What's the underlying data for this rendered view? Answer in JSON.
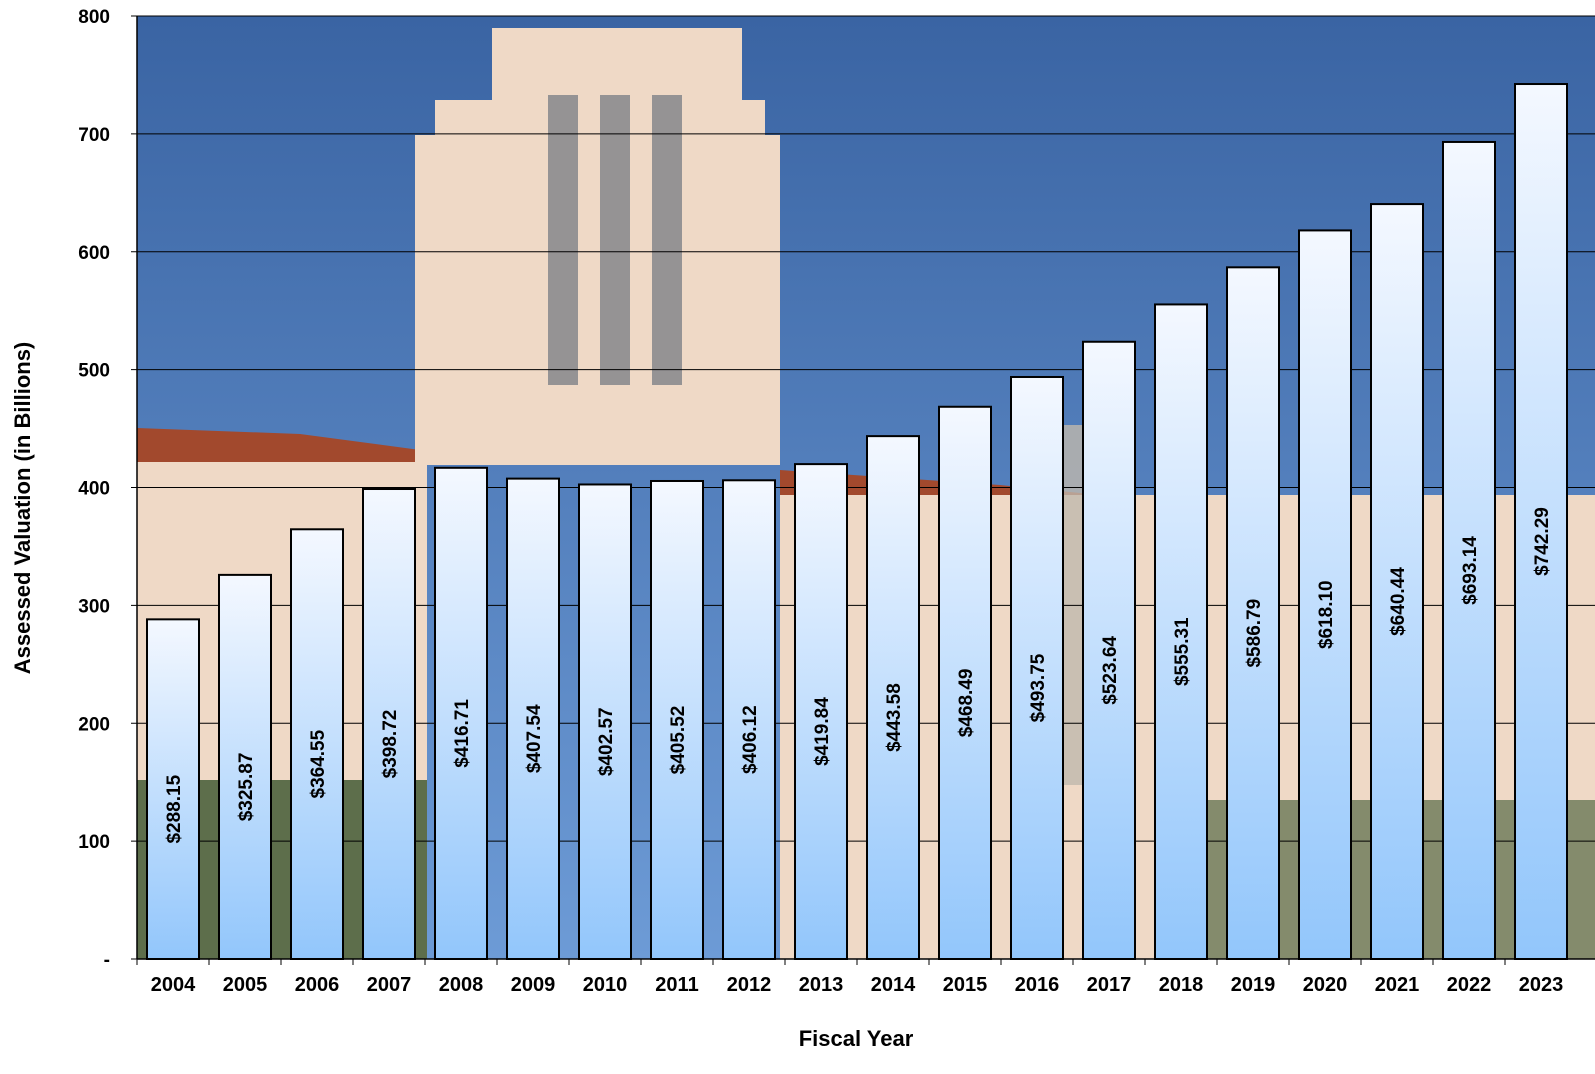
{
  "chart_data": {
    "type": "bar",
    "title": "",
    "xlabel": "Fiscal Year",
    "ylabel": "Assessed Valuation (in Billions)",
    "ylim": [
      0,
      800
    ],
    "yticks": [
      {
        "value": 0,
        "label": "-"
      },
      {
        "value": 100,
        "label": "100"
      },
      {
        "value": 200,
        "label": "200"
      },
      {
        "value": 300,
        "label": "300"
      },
      {
        "value": 400,
        "label": "400"
      },
      {
        "value": 500,
        "label": "500"
      },
      {
        "value": 600,
        "label": "600"
      },
      {
        "value": 700,
        "label": "700"
      },
      {
        "value": 800,
        "label": "800"
      }
    ],
    "grid": true,
    "legend": "none",
    "categories": [
      "2004",
      "2005",
      "2006",
      "2007",
      "2008",
      "2009",
      "2010",
      "2011",
      "2012",
      "2013",
      "2014",
      "2015",
      "2016",
      "2017",
      "2018",
      "2019",
      "2020",
      "2021",
      "2022",
      "2023"
    ],
    "values": [
      288.15,
      325.87,
      364.55,
      398.72,
      416.71,
      407.54,
      402.57,
      405.52,
      406.12,
      419.84,
      443.58,
      468.49,
      493.75,
      523.64,
      555.31,
      586.79,
      618.1,
      640.44,
      693.14,
      742.29
    ],
    "data_labels": [
      "$288.15",
      "$325.87",
      "$364.55",
      "$398.72",
      "$416.71",
      "$407.54",
      "$402.57",
      "$405.52",
      "$406.12",
      "$419.84",
      "$443.58",
      "$468.49",
      "$493.75",
      "$523.64",
      "$555.31",
      "$586.79",
      "$618.10",
      "$640.44",
      "$693.14",
      "$742.29"
    ],
    "colors": {
      "bar_top": "#f4f8ff",
      "bar_bottom": "#92c6fb",
      "bar_stroke": "#000000",
      "sky_top": "#3a64a3",
      "sky_bottom": "#6d9bd6",
      "building": "#efd9c6",
      "roof": "#a2492d",
      "foliage": "#2c4a22"
    }
  }
}
